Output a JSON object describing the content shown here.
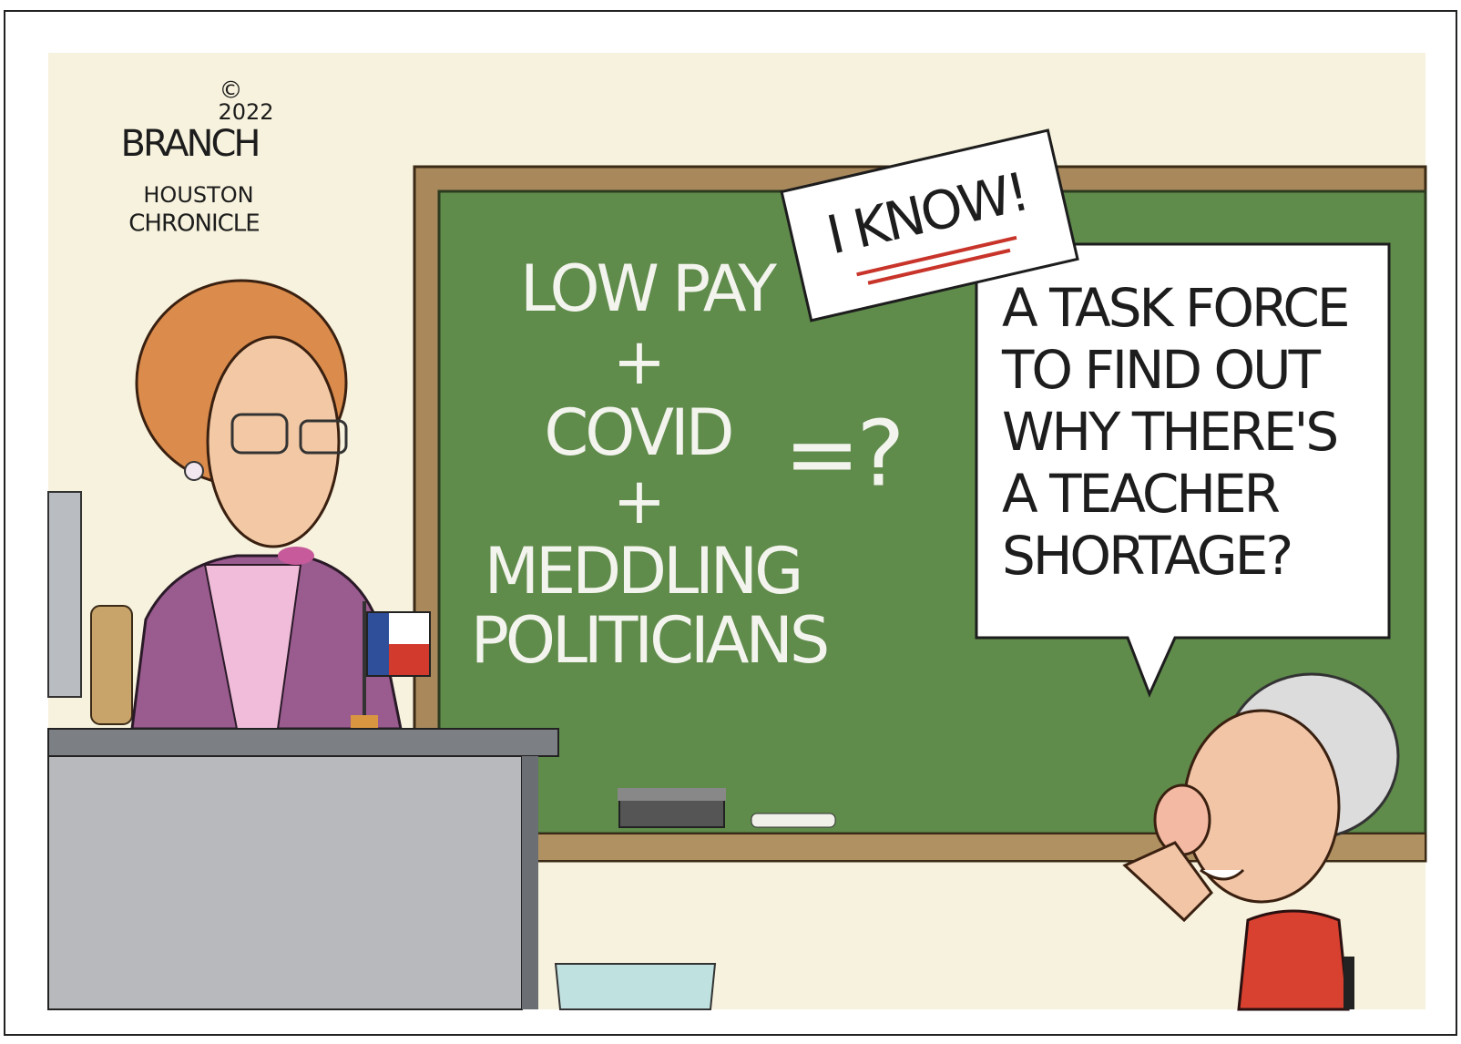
{
  "signature": {
    "copyright": "©",
    "year": "2022",
    "artist": "BRANCH",
    "publisher_line1": "HOUSTON",
    "publisher_line2": "CHRONICLE"
  },
  "chalkboard": {
    "lines": [
      "LOW PAY",
      "+",
      "COVID",
      "+",
      "MEDDLING",
      "POLITICIANS"
    ],
    "result": "=?"
  },
  "sign": {
    "text": "I KNOW!"
  },
  "speech_bubble": {
    "lines": [
      "A TASK FORCE",
      "TO FIND OUT",
      "WHY THERE'S",
      "A TEACHER",
      "SHORTAGE?"
    ]
  }
}
